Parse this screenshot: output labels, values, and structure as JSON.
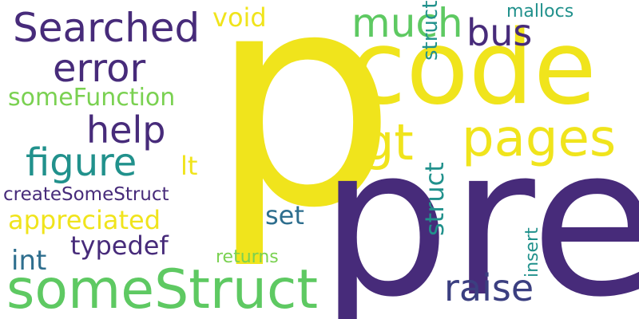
{
  "word_cloud": {
    "palette": {
      "yellow": "#f0e41c",
      "indigo": "#472b7a",
      "dark_blue": "#3b3f80",
      "teal_blue": "#2e6e8e",
      "teal": "#21918c",
      "green": "#5ec962",
      "light_green": "#7ad151"
    },
    "words": [
      {
        "text": "p",
        "color": "#f0e41c",
        "orientation": "horizontal"
      },
      {
        "text": "pre",
        "color": "#472b7a",
        "orientation": "horizontal"
      },
      {
        "text": "code",
        "color": "#f0e41c",
        "orientation": "horizontal"
      },
      {
        "text": "someStruct",
        "color": "#5ec962",
        "orientation": "horizontal"
      },
      {
        "text": "Searched",
        "color": "#472b7a",
        "orientation": "horizontal"
      },
      {
        "text": "pages",
        "color": "#f0e41c",
        "orientation": "horizontal"
      },
      {
        "text": "gt",
        "color": "#f0e41c",
        "orientation": "horizontal"
      },
      {
        "text": "much",
        "color": "#5ec962",
        "orientation": "horizontal"
      },
      {
        "text": "error",
        "color": "#472b7a",
        "orientation": "horizontal"
      },
      {
        "text": "help",
        "color": "#472b7a",
        "orientation": "horizontal"
      },
      {
        "text": "figure",
        "color": "#21918c",
        "orientation": "horizontal"
      },
      {
        "text": "bus",
        "color": "#472b7a",
        "orientation": "horizontal"
      },
      {
        "text": "raise",
        "color": "#3b3f80",
        "orientation": "horizontal"
      },
      {
        "text": "appreciated",
        "color": "#f0e41c",
        "orientation": "horizontal"
      },
      {
        "text": "someFunction",
        "color": "#7ad151",
        "orientation": "horizontal"
      },
      {
        "text": "void",
        "color": "#f0e41c",
        "orientation": "horizontal"
      },
      {
        "text": "typedef",
        "color": "#472b7a",
        "orientation": "horizontal"
      },
      {
        "text": "struct",
        "color": "#21918c",
        "orientation": "vertical"
      },
      {
        "text": "struct",
        "color": "#21918c",
        "orientation": "vertical"
      },
      {
        "text": "int",
        "color": "#2e6e8e",
        "orientation": "horizontal"
      },
      {
        "text": "set",
        "color": "#2e6e8e",
        "orientation": "horizontal"
      },
      {
        "text": "lt",
        "color": "#f0e41c",
        "orientation": "horizontal"
      },
      {
        "text": "createSomeStruct",
        "color": "#472b7a",
        "orientation": "horizontal"
      },
      {
        "text": "mallocs",
        "color": "#21918c",
        "orientation": "horizontal"
      },
      {
        "text": "returns",
        "color": "#7ad151",
        "orientation": "horizontal"
      },
      {
        "text": "insert",
        "color": "#21918c",
        "orientation": "vertical"
      }
    ]
  }
}
